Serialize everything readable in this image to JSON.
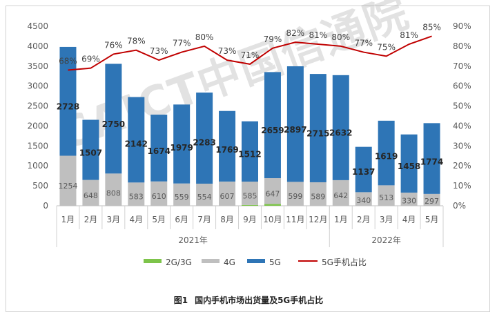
{
  "caption": {
    "fig": "图1",
    "text": "国内手机市场出货量及5G手机占比"
  },
  "watermark": "CAICT中国信通院",
  "chart_data": {
    "type": "bar",
    "stacked": true,
    "categories": [
      "1月",
      "2月",
      "3月",
      "4月",
      "5月",
      "6月",
      "7月",
      "8月",
      "9月",
      "10月",
      "11月",
      "12月",
      "1月",
      "2月",
      "3月",
      "4月",
      "5月"
    ],
    "groups": [
      {
        "label": "2021年",
        "count": 12
      },
      {
        "label": "2022年",
        "count": 5
      }
    ],
    "series": [
      {
        "name": "2G/3G",
        "color": "#7dc44a",
        "type": "bar",
        "values": [
          0,
          0,
          0,
          0,
          0,
          0,
          0,
          0,
          20,
          45,
          0,
          0,
          0,
          0,
          0,
          0,
          0
        ]
      },
      {
        "name": "4G",
        "color": "#bfbfbf",
        "type": "bar",
        "values": [
          1254,
          648,
          808,
          583,
          610,
          559,
          554,
          607,
          585,
          647,
          599,
          589,
          642,
          340,
          513,
          330,
          297
        ]
      },
      {
        "name": "5G",
        "color": "#2e75b6",
        "type": "bar",
        "values": [
          2728,
          1507,
          2750,
          2142,
          1674,
          1979,
          2283,
          1769,
          1512,
          2659,
          2897,
          2715,
          2632,
          1137,
          1619,
          1458,
          1774
        ]
      },
      {
        "name": "5G手机占比",
        "color": "#c00000",
        "type": "line",
        "axis": "right",
        "values": [
          68,
          69,
          76,
          78,
          73,
          77,
          80,
          73,
          71,
          79,
          82,
          81,
          80,
          77,
          75,
          81,
          85
        ]
      }
    ],
    "labels_4g": [
      "1254",
      "648",
      "808",
      "583",
      "610",
      "559",
      "554",
      "607",
      "585",
      "647",
      "599",
      "589",
      "642",
      "340",
      "513",
      "330",
      "297"
    ],
    "labels_5g": [
      "2728",
      "1507",
      "2750",
      "2142",
      "1674",
      "1979",
      "2283",
      "1769",
      "1512",
      "2659",
      "2897",
      "2715",
      "2632",
      "1137",
      "1619",
      "1458",
      "1774"
    ],
    "labels_pct": [
      "68%",
      "69%",
      "76%",
      "78%",
      "73%",
      "77%",
      "80%",
      "73%",
      "71%",
      "79%",
      "82%",
      "81%",
      "80%",
      "77%",
      "75%",
      "81%",
      "85%"
    ],
    "y_left": {
      "min": 0,
      "max": 4500,
      "step": 500,
      "ticks": [
        "0",
        "500",
        "1000",
        "1500",
        "2000",
        "2500",
        "3000",
        "3500",
        "4000",
        "4500"
      ]
    },
    "y_right": {
      "min": 0,
      "max": 90,
      "step": 10,
      "ticks": [
        "0%",
        "10%",
        "20%",
        "30%",
        "40%",
        "50%",
        "60%",
        "70%",
        "80%",
        "90%"
      ]
    },
    "legend": {
      "position": "bottom",
      "items": [
        "2G/3G",
        "4G",
        "5G",
        "5G手机占比"
      ]
    },
    "grid": false
  }
}
